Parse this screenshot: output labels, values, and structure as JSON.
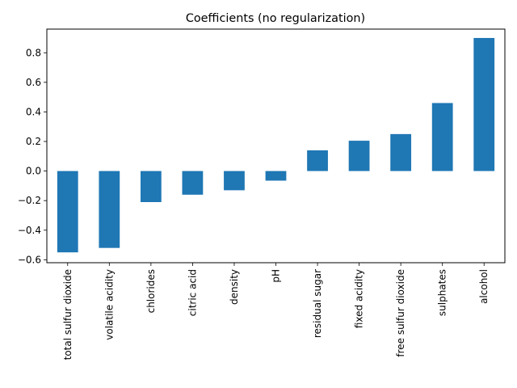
{
  "chart_data": {
    "type": "bar",
    "title": "Coefficients (no regularization)",
    "xlabel": "",
    "ylabel": "",
    "categories": [
      "total sulfur dioxide",
      "volatile acidity",
      "chlorides",
      "citric acid",
      "density",
      "pH",
      "residual sugar",
      "fixed acidity",
      "free sulfur dioxide",
      "sulphates",
      "alcohol"
    ],
    "values": [
      -0.55,
      -0.52,
      -0.21,
      -0.16,
      -0.13,
      -0.065,
      0.14,
      0.205,
      0.25,
      0.46,
      0.9
    ],
    "ylim": [
      -0.62,
      0.96
    ],
    "yticks": [
      "−0.6",
      "−0.4",
      "−0.2",
      "0.0",
      "0.2",
      "0.4",
      "0.6",
      "0.8"
    ],
    "ytick_values": [
      -0.6,
      -0.4,
      -0.2,
      0.0,
      0.2,
      0.4,
      0.6,
      0.8
    ],
    "grid": false,
    "bar_color": "#1f77b4"
  }
}
